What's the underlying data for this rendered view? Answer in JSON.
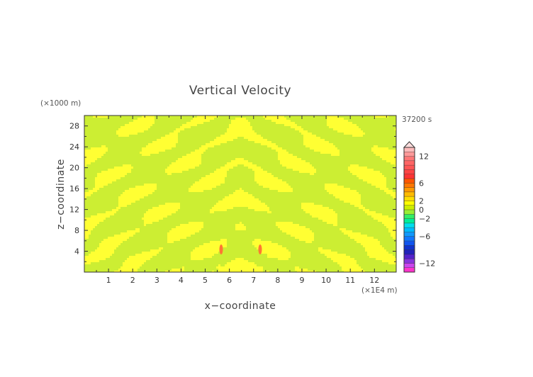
{
  "chart_data": {
    "type": "heatmap",
    "title": "Vertical Velocity",
    "xlabel": "x−coordinate",
    "ylabel": "z−coordinate",
    "x_unit": "(×1E4 m)",
    "y_unit": "(×1000 m)",
    "time_label": "37200 s",
    "xlim": [
      0,
      12.9
    ],
    "ylim": [
      0,
      30
    ],
    "x_ticks": [
      "1",
      "2",
      "3",
      "4",
      "5",
      "6",
      "7",
      "8",
      "9",
      "10",
      "11",
      "12"
    ],
    "y_ticks": [
      "4",
      "8",
      "12",
      "16",
      "20",
      "24",
      "28"
    ],
    "colorbar": {
      "levels": [
        -14,
        -13,
        -12,
        -11,
        -10,
        -9,
        -8,
        -7,
        -6,
        -5,
        -4,
        -3,
        -2,
        -1,
        0,
        1,
        2,
        3,
        4,
        5,
        6,
        7,
        8,
        9,
        10,
        11,
        12,
        13,
        14
      ],
      "colors": [
        "#ff33cc",
        "#cc44ee",
        "#8833dd",
        "#5522cc",
        "#2222bb",
        "#1133cc",
        "#1155ee",
        "#1177ff",
        "#1199ff",
        "#00bbff",
        "#00ddee",
        "#00ee99",
        "#33ee66",
        "#99ee33",
        "#ccee00",
        "#ffff00",
        "#ffdd00",
        "#ffbb00",
        "#ff9900",
        "#ff7700",
        "#ff5500",
        "#ff3333",
        "#ff4444",
        "#ff5555",
        "#ff6666",
        "#ff7777",
        "#ff9999",
        "#ffbbbb"
      ],
      "tick_labels": [
        "12",
        "6",
        "2",
        "0",
        "−2",
        "−6",
        "−12"
      ],
      "tick_values": [
        12,
        6,
        2,
        0,
        -2,
        -6,
        -12
      ]
    },
    "field_description_colors": {
      "background": "#ccee33",
      "positive": "#ffff33",
      "strong": "#ff7733"
    }
  }
}
